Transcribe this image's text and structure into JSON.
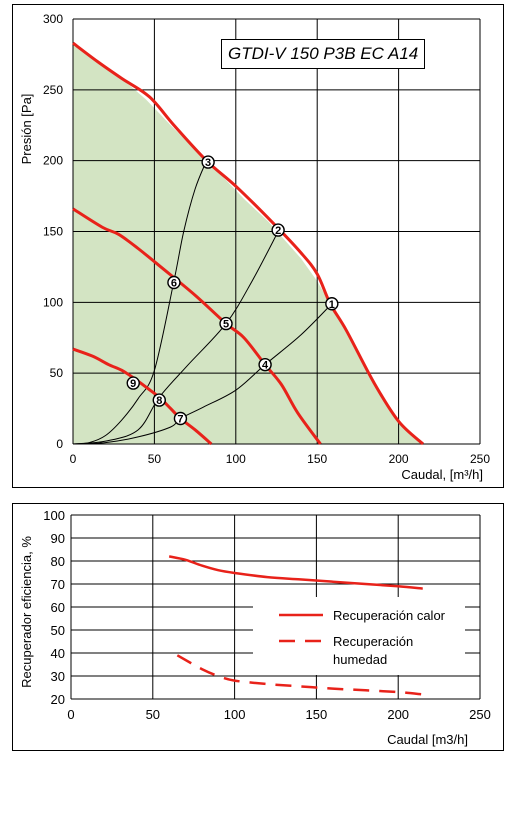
{
  "chart_data": [
    {
      "type": "line",
      "title": "GTDI-V 150 P3B EC A14",
      "xlabel": "Caudal, [m³/h]",
      "ylabel": "Presión [Pa]",
      "xlim": [
        0,
        250
      ],
      "ylim": [
        0,
        300
      ],
      "xticks": [
        "0",
        "50",
        "100",
        "150",
        "200",
        "250"
      ],
      "yticks": [
        "0",
        "50",
        "100",
        "150",
        "200",
        "250",
        "300"
      ],
      "grid": true,
      "colors": {
        "fan_curve": "#e8221a",
        "area_fill": "#d3e4c3",
        "system_curve": "#000000"
      },
      "area": [
        [
          0,
          283
        ],
        [
          15,
          270
        ],
        [
          30,
          258
        ],
        [
          45,
          243
        ],
        [
          60,
          225
        ],
        [
          75,
          208
        ],
        [
          90,
          191
        ],
        [
          105,
          173
        ],
        [
          120,
          157
        ],
        [
          140,
          131
        ],
        [
          150,
          115
        ],
        [
          158,
          99
        ],
        [
          168,
          80
        ],
        [
          185,
          43
        ],
        [
          200,
          16
        ],
        [
          215,
          0
        ],
        [
          0,
          0
        ]
      ],
      "fan_curves": [
        {
          "points": [
            [
              0,
              283
            ],
            [
              15,
              270
            ],
            [
              30,
              258
            ],
            [
              47,
              245
            ],
            [
              62,
              225
            ],
            [
              82,
              200
            ],
            [
              100,
              182
            ],
            [
              122,
              157
            ],
            [
              140,
              135
            ],
            [
              150,
              120
            ],
            [
              158,
              99
            ],
            [
              168,
              80
            ],
            [
              185,
              43
            ],
            [
              200,
              16
            ],
            [
              215,
              0
            ]
          ]
        },
        {
          "points": [
            [
              0,
              166
            ],
            [
              18,
              153
            ],
            [
              28,
              148
            ],
            [
              40,
              138
            ],
            [
              55,
              124
            ],
            [
              75,
              105
            ],
            [
              94,
              85
            ],
            [
              105,
              75
            ],
            [
              118,
              56
            ],
            [
              128,
              42
            ],
            [
              138,
              22
            ],
            [
              152,
              0
            ]
          ]
        },
        {
          "points": [
            [
              0,
              67
            ],
            [
              12,
              62
            ],
            [
              22,
              56
            ],
            [
              30,
              52
            ],
            [
              38,
              46
            ],
            [
              45,
              40
            ],
            [
              53,
              33
            ],
            [
              60,
              25
            ],
            [
              66,
              18
            ],
            [
              75,
              10
            ],
            [
              85,
              0
            ]
          ]
        }
      ],
      "system_curves": [
        {
          "points": [
            [
              0,
              0
            ],
            [
              10,
              1
            ],
            [
              20,
              6
            ],
            [
              30,
              17
            ],
            [
              40,
              32
            ],
            [
              50,
              52
            ],
            [
              62,
              115
            ],
            [
              68,
              150
            ],
            [
              75,
              180
            ],
            [
              82,
              200
            ]
          ]
        },
        {
          "points": [
            [
              0,
              0
            ],
            [
              20,
              2
            ],
            [
              40,
              10
            ],
            [
              53,
              33
            ],
            [
              70,
              55
            ],
            [
              94,
              85
            ],
            [
              110,
              115
            ],
            [
              126,
              150
            ]
          ]
        },
        {
          "points": [
            [
              0,
              0
            ],
            [
              20,
              1
            ],
            [
              40,
              5
            ],
            [
              60,
              12
            ],
            [
              66,
              18
            ],
            [
              80,
              26
            ],
            [
              100,
              38
            ],
            [
              118,
              56
            ],
            [
              140,
              77
            ],
            [
              159,
              99
            ]
          ]
        }
      ],
      "points": [
        {
          "label": "1",
          "x": 159,
          "y": 99
        },
        {
          "label": "2",
          "x": 126,
          "y": 151
        },
        {
          "label": "3",
          "x": 83,
          "y": 199
        },
        {
          "label": "4",
          "x": 118,
          "y": 56
        },
        {
          "label": "5",
          "x": 94,
          "y": 85
        },
        {
          "label": "6",
          "x": 62,
          "y": 114
        },
        {
          "label": "7",
          "x": 66,
          "y": 18
        },
        {
          "label": "8",
          "x": 53,
          "y": 31
        },
        {
          "label": "9",
          "x": 37,
          "y": 43
        }
      ]
    },
    {
      "type": "line",
      "title": "",
      "xlabel": "Caudal [m3/h]",
      "ylabel": "Recuperador eficiencia, %",
      "xlim": [
        0,
        250
      ],
      "ylim": [
        20,
        100
      ],
      "xticks": [
        "0",
        "50",
        "100",
        "150",
        "200",
        "250"
      ],
      "yticks": [
        "20",
        "30",
        "40",
        "50",
        "60",
        "70",
        "80",
        "90",
        "100"
      ],
      "grid": true,
      "legend_position": "right",
      "series": [
        {
          "name": "Recuperación calor",
          "style": "solid",
          "color": "#e8221a",
          "x": [
            60,
            70,
            80,
            90,
            100,
            120,
            140,
            160,
            180,
            200,
            215
          ],
          "values": [
            82,
            80.5,
            78,
            76,
            74.8,
            73,
            72,
            71,
            70,
            69,
            68
          ]
        },
        {
          "name": "Recuperación humedad",
          "style": "dashed",
          "color": "#e8221a",
          "x": [
            65,
            80,
            90,
            100,
            120,
            140,
            160,
            180,
            200,
            215
          ],
          "values": [
            39,
            33,
            30,
            28,
            26.5,
            25.5,
            24.5,
            23.8,
            23,
            22
          ]
        }
      ],
      "legend_labels": [
        "Recuperación calor",
        "Recuperación",
        "humedad"
      ]
    }
  ]
}
